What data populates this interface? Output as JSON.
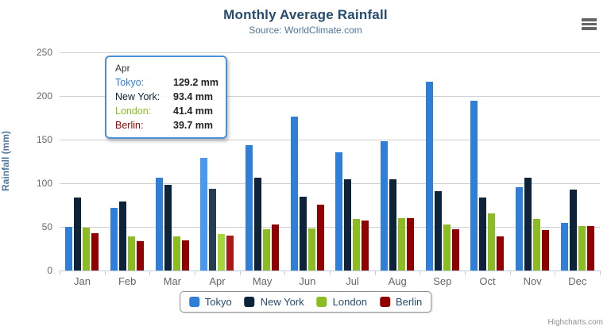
{
  "chart": {
    "title": "Monthly Average Rainfall",
    "subtitle": "Source: WorldClimate.com",
    "credits": "Highcharts.com"
  },
  "chart_data": {
    "type": "bar",
    "title": "Monthly Average Rainfall",
    "subtitle": "Source: WorldClimate.com",
    "xlabel": "",
    "ylabel": "Rainfall (mm)",
    "ylim": [
      0,
      250
    ],
    "yticks": [
      0,
      50,
      100,
      150,
      200,
      250
    ],
    "grid": true,
    "legend_position": "bottom",
    "hovered_category": "Apr",
    "categories": [
      "Jan",
      "Feb",
      "Mar",
      "Apr",
      "May",
      "Jun",
      "Jul",
      "Aug",
      "Sep",
      "Oct",
      "Nov",
      "Dec"
    ],
    "series": [
      {
        "name": "Tokyo",
        "color": "#2f7ed8",
        "values": [
          49.9,
          71.5,
          106.4,
          129.2,
          144.0,
          176.0,
          135.6,
          148.5,
          216.4,
          194.1,
          95.6,
          54.4
        ]
      },
      {
        "name": "New York",
        "color": "#0d233a",
        "values": [
          83.6,
          78.8,
          98.5,
          93.4,
          106.0,
          84.5,
          105.0,
          104.3,
          91.2,
          83.5,
          106.6,
          92.3
        ]
      },
      {
        "name": "London",
        "color": "#8bbc21",
        "values": [
          48.9,
          38.8,
          39.3,
          41.4,
          47.0,
          48.3,
          59.0,
          59.6,
          52.4,
          65.2,
          59.3,
          51.2
        ]
      },
      {
        "name": "Berlin",
        "color": "#910000",
        "values": [
          42.4,
          33.2,
          34.5,
          39.7,
          52.6,
          75.5,
          57.4,
          60.4,
          47.6,
          39.1,
          46.8,
          51.1
        ]
      }
    ]
  },
  "tooltip": {
    "title": "Apr",
    "border_color": "#4a90d9",
    "rows": [
      {
        "name": "Tokyo:",
        "value": "129.2 mm",
        "color": "#2f7ed8"
      },
      {
        "name": "New York:",
        "value": "93.4 mm",
        "color": "#0d233a"
      },
      {
        "name": "London:",
        "value": "41.4 mm",
        "color": "#8bbc21"
      },
      {
        "name": "Berlin:",
        "value": "39.7 mm",
        "color": "#910000"
      }
    ]
  },
  "legend": {
    "items": [
      "Tokyo",
      "New York",
      "London",
      "Berlin"
    ]
  }
}
